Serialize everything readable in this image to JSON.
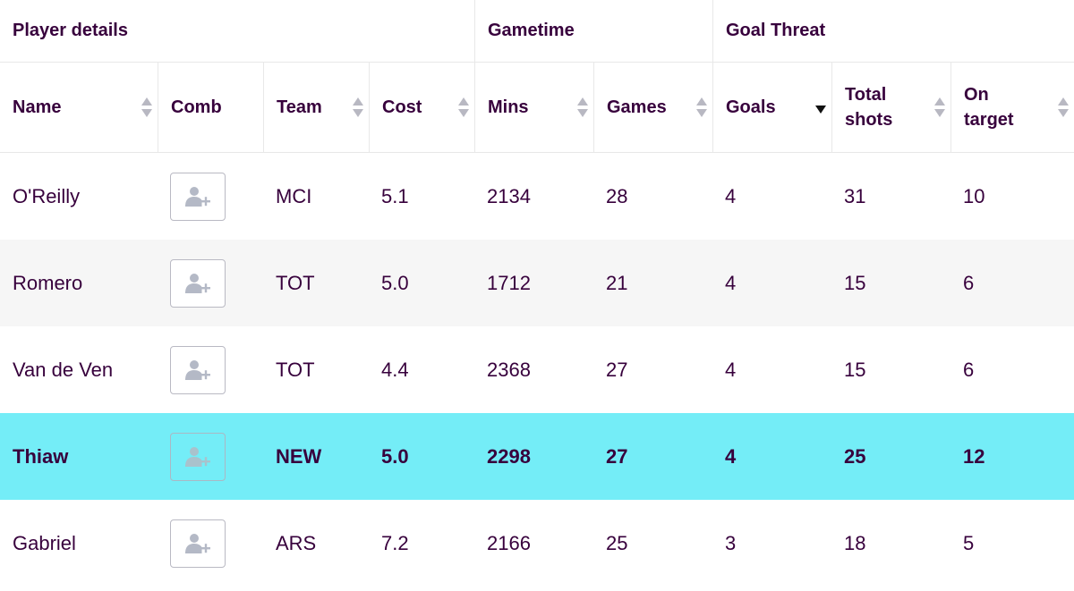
{
  "groups": {
    "player_details": "Player details",
    "gametime": "Gametime",
    "goal_threat": "Goal Threat"
  },
  "columns": [
    {
      "label": "Name",
      "sortable": true
    },
    {
      "label": "Comb",
      "sortable": false
    },
    {
      "label": "Team",
      "sortable": true
    },
    {
      "label": "Cost",
      "sortable": true
    },
    {
      "label": "Mins",
      "sortable": true
    },
    {
      "label": "Games",
      "sortable": true
    },
    {
      "label": "Goals",
      "sortable": true,
      "sorted": "desc"
    },
    {
      "label": "Total shots",
      "sortable": true
    },
    {
      "label": "On target",
      "sortable": true
    }
  ],
  "rows": [
    {
      "name": "O'Reilly",
      "team": "MCI",
      "cost": "5.1",
      "mins": "2134",
      "games": "28",
      "goals": "4",
      "total_shots": "31",
      "on_target": "10",
      "highlighted": false
    },
    {
      "name": "Romero",
      "team": "TOT",
      "cost": "5.0",
      "mins": "1712",
      "games": "21",
      "goals": "4",
      "total_shots": "15",
      "on_target": "6",
      "highlighted": false
    },
    {
      "name": "Van de Ven",
      "team": "TOT",
      "cost": "4.4",
      "mins": "2368",
      "games": "27",
      "goals": "4",
      "total_shots": "15",
      "on_target": "6",
      "highlighted": false
    },
    {
      "name": "Thiaw",
      "team": "NEW",
      "cost": "5.0",
      "mins": "2298",
      "games": "27",
      "goals": "4",
      "total_shots": "25",
      "on_target": "12",
      "highlighted": true
    },
    {
      "name": "Gabriel",
      "team": "ARS",
      "cost": "7.2",
      "mins": "2166",
      "games": "25",
      "goals": "3",
      "total_shots": "18",
      "on_target": "5",
      "highlighted": false
    }
  ],
  "icons": {
    "comb": "add-user-icon",
    "sort": "sort-icon"
  },
  "colors": {
    "text": "#37003c",
    "highlight": "#74edf7",
    "alt_row": "#f6f6f6",
    "border": "#e8e8e8"
  }
}
